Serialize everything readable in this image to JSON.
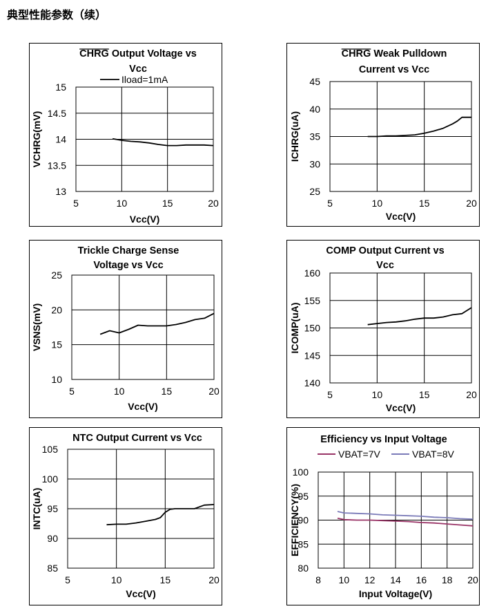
{
  "page": {
    "heading": "典型性能参数（续）"
  },
  "chart_data": [
    {
      "id": "chrg-voltage",
      "type": "line",
      "title_lines": [
        "CHRG Output Voltage vs",
        "Vcc"
      ],
      "overline_word": "CHRG",
      "xlabel": "Vcc(V)",
      "ylabel": "VCHRG(mV)",
      "xlim": [
        5,
        20
      ],
      "ylim": [
        13,
        15
      ],
      "xticks": [
        "5",
        "10",
        "15",
        "20"
      ],
      "yticks": [
        "13",
        "13.5",
        "14",
        "14.5",
        "15"
      ],
      "grid": true,
      "legend": [
        "Iload=1mA"
      ],
      "series": [
        {
          "name": "Iload=1mA",
          "color": "#000000",
          "x": [
            9,
            10,
            11,
            12,
            13,
            14,
            15,
            16,
            17,
            18,
            19,
            20
          ],
          "y": [
            14.01,
            13.98,
            13.96,
            13.95,
            13.93,
            13.9,
            13.88,
            13.88,
            13.89,
            13.89,
            13.89,
            13.88
          ]
        }
      ]
    },
    {
      "id": "chrg-pulldown",
      "type": "line",
      "title_lines": [
        "CHRG Weak Pulldown",
        "Current vs Vcc"
      ],
      "overline_word": "CHRG",
      "xlabel": "Vcc(V)",
      "ylabel": "ICHRG(uA)",
      "xlim": [
        5,
        20
      ],
      "ylim": [
        25,
        45
      ],
      "xticks": [
        "5",
        "10",
        "15",
        "20"
      ],
      "yticks": [
        "25",
        "30",
        "35",
        "40",
        "45"
      ],
      "grid": true,
      "legend": [],
      "series": [
        {
          "color": "#000000",
          "x": [
            9,
            10,
            11,
            12,
            13,
            14,
            15,
            16,
            17,
            18,
            18.5,
            19,
            20
          ],
          "y": [
            35,
            35,
            35.1,
            35.1,
            35.2,
            35.3,
            35.6,
            36,
            36.5,
            37.3,
            37.8,
            38.5,
            38.5
          ]
        }
      ]
    },
    {
      "id": "trickle-sense",
      "type": "line",
      "title_lines": [
        "Trickle Charge Sense",
        "Voltage vs Vcc"
      ],
      "xlabel": "Vcc(V)",
      "ylabel": "VSNS(mV)",
      "xlim": [
        5,
        20
      ],
      "ylim": [
        10,
        25
      ],
      "xticks": [
        "5",
        "10",
        "15",
        "20"
      ],
      "yticks": [
        "10",
        "15",
        "20",
        "25"
      ],
      "grid": true,
      "legend": [],
      "series": [
        {
          "color": "#000000",
          "x": [
            8,
            9,
            10,
            11,
            12,
            13,
            14,
            15,
            16,
            17,
            18,
            19,
            20
          ],
          "y": [
            16.5,
            17,
            16.7,
            17.2,
            17.8,
            17.7,
            17.7,
            17.7,
            17.9,
            18.2,
            18.6,
            18.8,
            19.5
          ]
        }
      ]
    },
    {
      "id": "comp-current",
      "type": "line",
      "title_lines": [
        "COMP Output Current vs",
        "Vcc"
      ],
      "xlabel": "Vcc(V)",
      "ylabel": "ICOMP(uA)",
      "xlim": [
        5,
        20
      ],
      "ylim": [
        140,
        160
      ],
      "xticks": [
        "5",
        "10",
        "15",
        "20"
      ],
      "yticks": [
        "140",
        "145",
        "150",
        "155",
        "160"
      ],
      "grid": true,
      "legend": [],
      "series": [
        {
          "color": "#000000",
          "x": [
            9,
            10,
            11,
            12,
            13,
            14,
            15,
            16,
            17,
            18,
            19,
            20
          ],
          "y": [
            150.6,
            150.8,
            151,
            151.1,
            151.3,
            151.6,
            151.8,
            151.8,
            152,
            152.4,
            152.6,
            153.7
          ]
        }
      ]
    },
    {
      "id": "ntc-current",
      "type": "line",
      "title_lines": [
        "NTC Output Current vs Vcc"
      ],
      "xlabel": "Vcc(V)",
      "ylabel": "INTC(uA)",
      "xlim": [
        5,
        20
      ],
      "ylim": [
        85,
        105
      ],
      "xticks": [
        "5",
        "10",
        "15",
        "20"
      ],
      "yticks": [
        "85",
        "90",
        "95",
        "100",
        "105"
      ],
      "grid": true,
      "legend": [],
      "series": [
        {
          "color": "#000000",
          "x": [
            9,
            10,
            11,
            12,
            13,
            14,
            14.5,
            15,
            15.5,
            16,
            17,
            18,
            19,
            20
          ],
          "y": [
            92.3,
            92.4,
            92.4,
            92.6,
            92.9,
            93.2,
            93.5,
            94.4,
            94.9,
            95,
            95,
            95,
            95.6,
            95.7
          ]
        }
      ]
    },
    {
      "id": "efficiency",
      "type": "line",
      "title_lines": [
        "Efficiency vs Input Voltage"
      ],
      "xlabel": "Input Voltage(V)",
      "ylabel": "EFFICIENCY(%)",
      "xlim": [
        8,
        20
      ],
      "ylim": [
        80,
        100
      ],
      "xticks": [
        "8",
        "10",
        "12",
        "14",
        "16",
        "18",
        "20"
      ],
      "yticks": [
        "80",
        "85",
        "90",
        "95",
        "100"
      ],
      "grid": true,
      "legend": [
        "VBAT=7V",
        "VBAT=8V"
      ],
      "series": [
        {
          "name": "VBAT=7V",
          "color": "#993366",
          "x": [
            9.5,
            10,
            11,
            12,
            13,
            14,
            15,
            16,
            17,
            18,
            19,
            20
          ],
          "y": [
            90.4,
            90.1,
            90,
            90,
            89.9,
            89.8,
            89.7,
            89.5,
            89.4,
            89.2,
            89,
            88.8
          ]
        },
        {
          "name": "VBAT=8V",
          "color": "#7a7ab8",
          "x": [
            9.5,
            10,
            11,
            12,
            13,
            14,
            15,
            16,
            17,
            18,
            19,
            20
          ],
          "y": [
            91.8,
            91.5,
            91.4,
            91.3,
            91.1,
            91,
            90.9,
            90.8,
            90.6,
            90.5,
            90.3,
            90.2
          ]
        }
      ]
    }
  ]
}
